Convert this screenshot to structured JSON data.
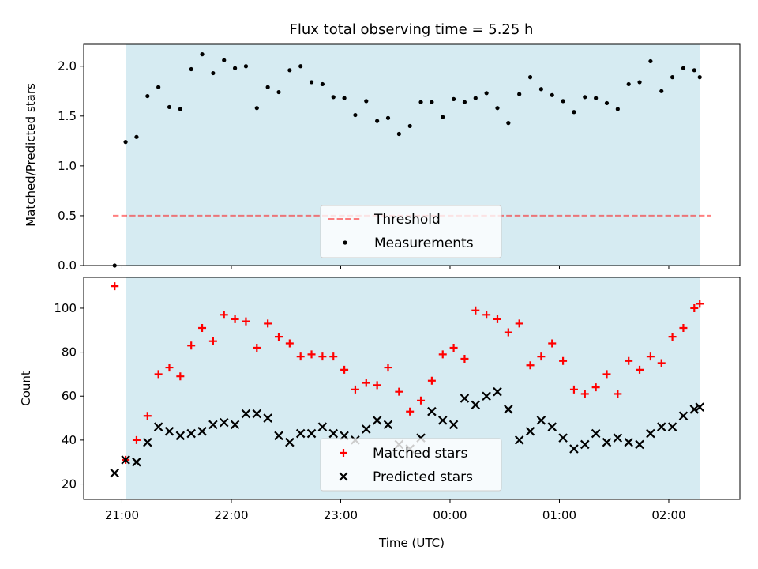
{
  "chart_data": [
    {
      "type": "scatter",
      "title": "Flux total observing time = 5.25 h",
      "xlabel": "",
      "ylabel": "Matched/Predicted stars",
      "ylim": [
        0,
        2.22
      ],
      "yticks": [
        "0.0",
        "0.5",
        "1.0",
        "1.5",
        "2.0"
      ],
      "ytick_values": [
        0,
        0.5,
        1.0,
        1.5,
        2.0
      ],
      "xlim": [
        "20:39",
        "02:39"
      ],
      "observing_window": [
        "21:02",
        "02:17"
      ],
      "threshold": {
        "label": "Threshold",
        "value": 0.5
      },
      "legend_position": "lower center",
      "series": [
        {
          "name": "Measurements",
          "x": [
            "20:56",
            "21:02",
            "21:08",
            "21:14",
            "21:20",
            "21:26",
            "21:32",
            "21:38",
            "21:44",
            "21:50",
            "21:56",
            "22:02",
            "22:08",
            "22:14",
            "22:20",
            "22:26",
            "22:32",
            "22:38",
            "22:44",
            "22:50",
            "22:56",
            "23:02",
            "23:08",
            "23:14",
            "23:20",
            "23:26",
            "23:32",
            "23:38",
            "23:44",
            "23:50",
            "23:56",
            "00:02",
            "00:08",
            "00:14",
            "00:20",
            "00:26",
            "00:32",
            "00:38",
            "00:44",
            "00:50",
            "00:56",
            "01:02",
            "01:08",
            "01:14",
            "01:20",
            "01:26",
            "01:32",
            "01:38",
            "01:44",
            "01:50",
            "01:56",
            "02:02",
            "02:08",
            "02:14",
            "02:17"
          ],
          "y": [
            0.0,
            1.24,
            1.29,
            1.7,
            1.79,
            1.59,
            1.57,
            1.97,
            2.12,
            1.93,
            2.06,
            1.98,
            2.0,
            1.58,
            1.79,
            1.74,
            1.96,
            2.0,
            1.84,
            1.82,
            1.69,
            1.68,
            1.51,
            1.65,
            1.45,
            1.48,
            1.32,
            1.4,
            1.64,
            1.64,
            1.49,
            1.67,
            1.64,
            1.68,
            1.73,
            1.58,
            1.43,
            1.72,
            1.89,
            1.77,
            1.71,
            1.65,
            1.54,
            1.69,
            1.68,
            1.63,
            1.57,
            1.82,
            1.84,
            2.05,
            1.75,
            1.89,
            1.98,
            1.96,
            1.89
          ]
        }
      ]
    },
    {
      "type": "scatter",
      "title": "",
      "xlabel": "Time (UTC)",
      "ylabel": "Count",
      "ylim": [
        13,
        114
      ],
      "yticks": [
        "20",
        "40",
        "60",
        "80",
        "100"
      ],
      "ytick_values": [
        20,
        40,
        60,
        80,
        100
      ],
      "xticks": [
        "21:00",
        "22:00",
        "23:00",
        "00:00",
        "01:00",
        "02:00"
      ],
      "xlim": [
        "20:39",
        "02:39"
      ],
      "observing_window": [
        "21:02",
        "02:17"
      ],
      "legend_position": "lower center",
      "series": [
        {
          "name": "Matched stars",
          "color": "#ff0000",
          "x": [
            "20:56",
            "21:02",
            "21:08",
            "21:14",
            "21:20",
            "21:26",
            "21:32",
            "21:38",
            "21:44",
            "21:50",
            "21:56",
            "22:02",
            "22:08",
            "22:14",
            "22:20",
            "22:26",
            "22:32",
            "22:38",
            "22:44",
            "22:50",
            "22:56",
            "23:02",
            "23:08",
            "23:14",
            "23:20",
            "23:26",
            "23:32",
            "23:38",
            "23:44",
            "23:50",
            "23:56",
            "00:02",
            "00:08",
            "00:14",
            "00:20",
            "00:26",
            "00:32",
            "00:38",
            "00:44",
            "00:50",
            "00:56",
            "01:02",
            "01:08",
            "01:14",
            "01:20",
            "01:26",
            "01:32",
            "01:38",
            "01:44",
            "01:50",
            "01:56",
            "02:02",
            "02:08",
            "02:14",
            "02:17"
          ],
          "y": [
            110,
            31,
            40,
            51,
            70,
            73,
            69,
            83,
            91,
            85,
            97,
            95,
            94,
            82,
            93,
            87,
            84,
            78,
            79,
            78,
            78,
            72,
            63,
            66,
            65,
            73,
            62,
            53,
            58,
            67,
            79,
            82,
            77,
            99,
            97,
            95,
            89,
            93,
            74,
            78,
            84,
            76,
            63,
            61,
            64,
            70,
            61,
            76,
            72,
            78,
            75,
            87,
            91,
            100,
            102
          ]
        },
        {
          "name": "Predicted stars",
          "color": "#000000",
          "x": [
            "20:56",
            "21:02",
            "21:08",
            "21:14",
            "21:20",
            "21:26",
            "21:32",
            "21:38",
            "21:44",
            "21:50",
            "21:56",
            "22:02",
            "22:08",
            "22:14",
            "22:20",
            "22:26",
            "22:32",
            "22:38",
            "22:44",
            "22:50",
            "22:56",
            "23:02",
            "23:08",
            "23:14",
            "23:20",
            "23:26",
            "23:32",
            "23:38",
            "23:44",
            "23:50",
            "23:56",
            "00:02",
            "00:08",
            "00:14",
            "00:20",
            "00:26",
            "00:32",
            "00:38",
            "00:44",
            "00:50",
            "00:56",
            "01:02",
            "01:08",
            "01:14",
            "01:20",
            "01:26",
            "01:32",
            "01:38",
            "01:44",
            "01:50",
            "01:56",
            "02:02",
            "02:08",
            "02:14",
            "02:17"
          ],
          "y": [
            25,
            31,
            30,
            39,
            46,
            44,
            42,
            43,
            44,
            47,
            48,
            47,
            52,
            52,
            50,
            42,
            39,
            43,
            43,
            46,
            43,
            42,
            40,
            45,
            49,
            47,
            38,
            36,
            41,
            53,
            49,
            47,
            59,
            56,
            60,
            62,
            54,
            40,
            44,
            49,
            46,
            41,
            36,
            38,
            43,
            39,
            41,
            39,
            38,
            43,
            46,
            46,
            51,
            54,
            55
          ]
        }
      ]
    }
  ]
}
